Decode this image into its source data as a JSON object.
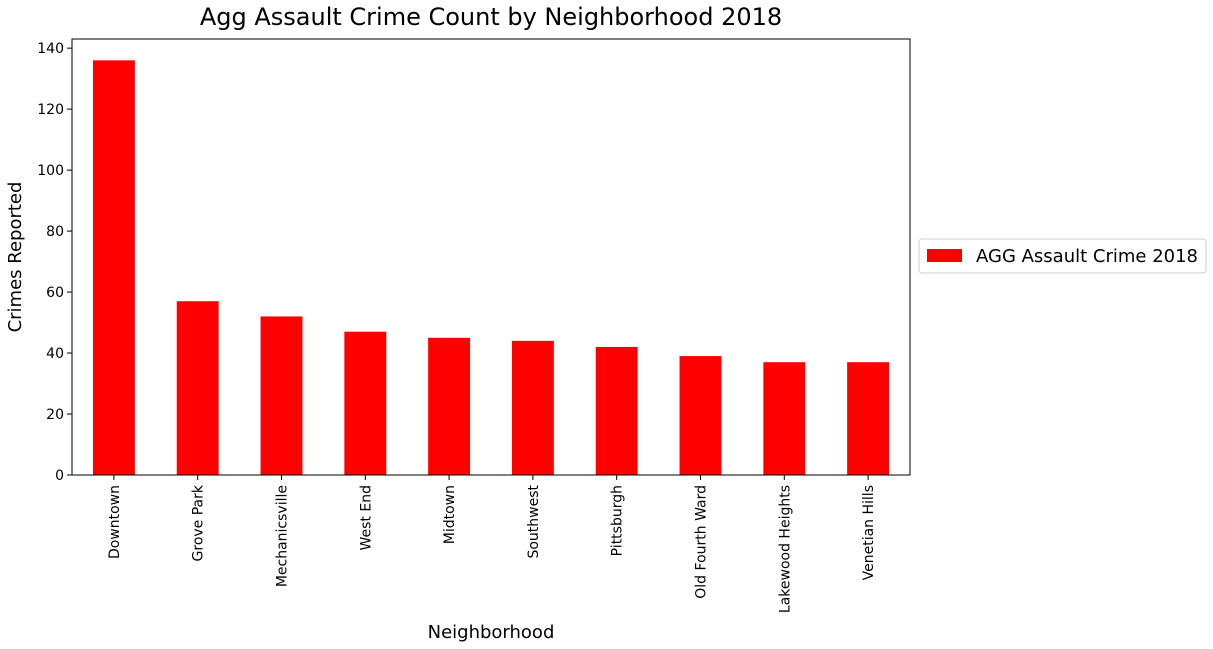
{
  "chart_data": {
    "type": "bar",
    "title": "Agg Assault Crime Count by Neighborhood 2018",
    "xlabel": "Neighborhood",
    "ylabel": "Crimes Reported",
    "categories": [
      "Downtown",
      "Grove Park",
      "Mechanicsville",
      "West End",
      "Midtown",
      "Southwest",
      "Pittsburgh",
      "Old Fourth Ward",
      "Lakewood Heights",
      "Venetian Hills"
    ],
    "series": [
      {
        "name": "AGG Assault Crime 2018",
        "color": "#ff0000",
        "values": [
          136,
          57,
          52,
          47,
          45,
          44,
          42,
          39,
          37,
          37
        ]
      }
    ],
    "ylim": [
      0,
      143
    ],
    "yticks": [
      0,
      20,
      40,
      60,
      80,
      100,
      120,
      140
    ],
    "grid": false,
    "legend_position": "center-right outside"
  }
}
